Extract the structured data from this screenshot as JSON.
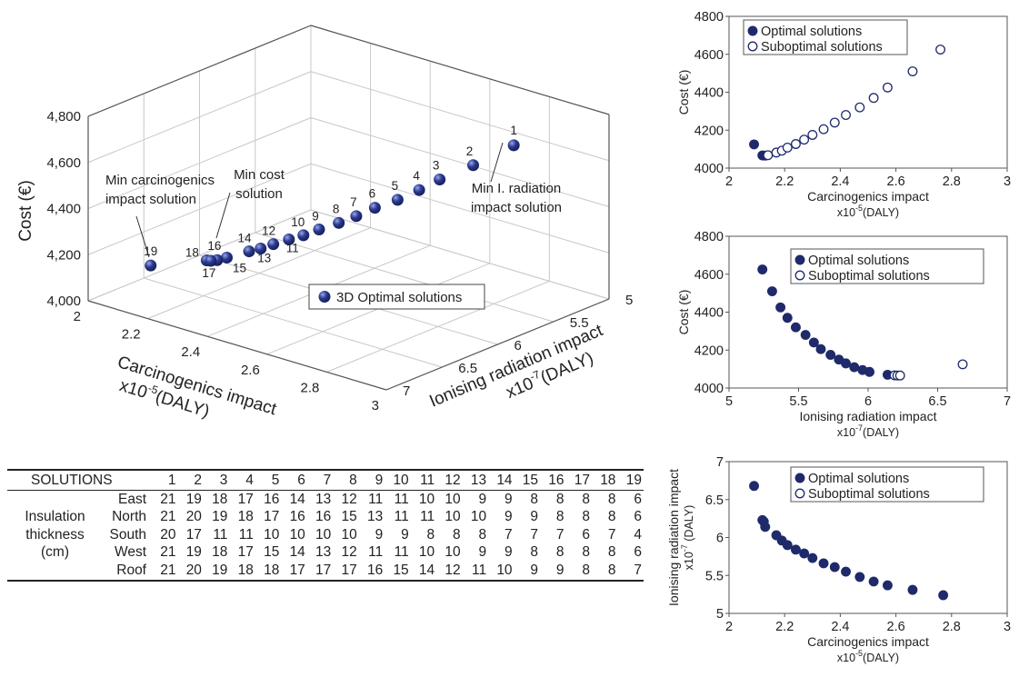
{
  "chart_data": [
    {
      "type": "scatter3d",
      "zlabel": "Cost (€)",
      "xlabel": [
        "Carcinogenics impact",
        "x10",
        "-5",
        "(DALY)"
      ],
      "ylabel": [
        "Ionising radiation impact",
        "x10",
        "-7",
        "(DALY)"
      ],
      "xlim": [
        2,
        3
      ],
      "ylim": [
        5,
        7
      ],
      "zlim": [
        4000,
        4800
      ],
      "x_ticks": [
        "2",
        "2.2",
        "2.4",
        "2.6",
        "2.8",
        "3"
      ],
      "y_ticks": [
        "5",
        "5.5",
        "6",
        "6.5",
        "7"
      ],
      "z_ticks": [
        "4,000",
        "4,200",
        "4,400",
        "4,600",
        "4,800"
      ],
      "legend": "3D Optimal solutions",
      "annotations": {
        "min_carc": [
          "Min carcinogenics",
          "impact solution"
        ],
        "min_cost": [
          "Min cost",
          "solution"
        ],
        "min_rad": [
          "Min I. radiation",
          "impact solution"
        ]
      },
      "points": [
        {
          "label": "1",
          "x": 2.77,
          "y": 5.24,
          "z": 4625
        },
        {
          "label": "2",
          "x": 2.66,
          "y": 5.31,
          "z": 4510
        },
        {
          "label": "3",
          "x": 2.57,
          "y": 5.37,
          "z": 4425
        },
        {
          "label": "4",
          "x": 2.52,
          "y": 5.42,
          "z": 4370
        },
        {
          "label": "5",
          "x": 2.47,
          "y": 5.48,
          "z": 4320
        },
        {
          "label": "6",
          "x": 2.42,
          "y": 5.55,
          "z": 4280
        },
        {
          "label": "7",
          "x": 2.38,
          "y": 5.61,
          "z": 4240
        },
        {
          "label": "8",
          "x": 2.34,
          "y": 5.66,
          "z": 4205
        },
        {
          "label": "9",
          "x": 2.3,
          "y": 5.73,
          "z": 4175
        },
        {
          "label": "10",
          "x": 2.27,
          "y": 5.79,
          "z": 4150
        },
        {
          "label": "11",
          "x": 2.24,
          "y": 5.84,
          "z": 4130
        },
        {
          "label": "12",
          "x": 2.21,
          "y": 5.9,
          "z": 4110
        },
        {
          "label": "13",
          "x": 2.19,
          "y": 5.96,
          "z": 4095
        },
        {
          "label": "14",
          "x": 2.17,
          "y": 6.01,
          "z": 4085
        },
        {
          "label": "15",
          "x": 2.14,
          "y": 6.13,
          "z": 4070
        },
        {
          "label": "16",
          "x": 2.13,
          "y": 6.19,
          "z": 4067
        },
        {
          "label": "17",
          "x": 2.12,
          "y": 6.22,
          "z": 4066
        },
        {
          "label": "18",
          "x": 2.11,
          "y": 6.23,
          "z": 4066
        },
        {
          "label": "19",
          "x": 2.09,
          "y": 6.68,
          "z": 4125
        }
      ]
    },
    {
      "type": "scatter",
      "xlabel": [
        "Carcinogenics impact",
        "x10",
        "-5",
        "(DALY)"
      ],
      "ylabel": [
        "Cost (€)"
      ],
      "xlim": [
        2,
        3
      ],
      "ylim": [
        4000,
        4800
      ],
      "x_ticks": [
        2,
        2.2,
        2.4,
        2.6,
        2.8,
        3
      ],
      "y_ticks": [
        4000,
        4200,
        4400,
        4600,
        4800
      ],
      "legend_position": "top-left",
      "series": [
        {
          "name": "Optimal solutions",
          "marker": "filled",
          "points": [
            [
              2.09,
              4125
            ],
            [
              2.12,
              4067
            ],
            [
              2.13,
              4066
            ]
          ]
        },
        {
          "name": "Suboptimal solutions",
          "marker": "open",
          "points": [
            [
              2.14,
              4068
            ],
            [
              2.17,
              4082
            ],
            [
              2.19,
              4092
            ],
            [
              2.21,
              4108
            ],
            [
              2.24,
              4127
            ],
            [
              2.27,
              4150
            ],
            [
              2.3,
              4175
            ],
            [
              2.34,
              4205
            ],
            [
              2.38,
              4240
            ],
            [
              2.42,
              4280
            ],
            [
              2.47,
              4320
            ],
            [
              2.52,
              4370
            ],
            [
              2.57,
              4425
            ],
            [
              2.66,
              4510
            ],
            [
              2.76,
              4625
            ]
          ]
        }
      ]
    },
    {
      "type": "scatter",
      "xlabel": [
        "Ionising radiation impact",
        "x10",
        "-7",
        "(DALY)"
      ],
      "ylabel": [
        "Cost (€)"
      ],
      "xlim": [
        5,
        7
      ],
      "ylim": [
        4000,
        4800
      ],
      "x_ticks": [
        5,
        5.5,
        6,
        6.5,
        7
      ],
      "y_ticks": [
        4000,
        4200,
        4400,
        4600,
        4800
      ],
      "legend_position": "top-right",
      "series": [
        {
          "name": "Optimal solutions",
          "marker": "filled",
          "points": [
            [
              5.24,
              4625
            ],
            [
              5.31,
              4510
            ],
            [
              5.37,
              4425
            ],
            [
              5.42,
              4370
            ],
            [
              5.48,
              4320
            ],
            [
              5.55,
              4280
            ],
            [
              5.61,
              4240
            ],
            [
              5.66,
              4205
            ],
            [
              5.73,
              4175
            ],
            [
              5.79,
              4150
            ],
            [
              5.84,
              4130
            ],
            [
              5.9,
              4110
            ],
            [
              5.96,
              4095
            ],
            [
              6.01,
              4085
            ],
            [
              6.14,
              4070
            ]
          ]
        },
        {
          "name": "Suboptimal solutions",
          "marker": "open",
          "points": [
            [
              6.19,
              4067
            ],
            [
              6.21,
              4066
            ],
            [
              6.23,
              4066
            ],
            [
              6.68,
              4125
            ]
          ]
        }
      ]
    },
    {
      "type": "scatter",
      "xlabel": [
        "Carcinogenics impact",
        "x10",
        "-5",
        "(DALY)"
      ],
      "ylabel": [
        "Ionising radiation impact",
        "x10",
        "-7",
        " (DALY)"
      ],
      "xlim": [
        2,
        3
      ],
      "ylim": [
        5,
        7
      ],
      "x_ticks": [
        2,
        2.2,
        2.4,
        2.6,
        2.8,
        3
      ],
      "y_ticks": [
        5,
        5.5,
        6,
        6.5,
        7
      ],
      "legend_position": "top-right",
      "series": [
        {
          "name": "Optimal solutions",
          "marker": "filled",
          "points": [
            [
              2.09,
              6.68
            ],
            [
              2.12,
              6.23
            ],
            [
              2.125,
              6.21
            ],
            [
              2.13,
              6.14
            ],
            [
              2.17,
              6.03
            ],
            [
              2.19,
              5.96
            ],
            [
              2.21,
              5.9
            ],
            [
              2.24,
              5.84
            ],
            [
              2.27,
              5.79
            ],
            [
              2.3,
              5.73
            ],
            [
              2.34,
              5.66
            ],
            [
              2.38,
              5.61
            ],
            [
              2.42,
              5.55
            ],
            [
              2.47,
              5.48
            ],
            [
              2.52,
              5.42
            ],
            [
              2.57,
              5.37
            ],
            [
              2.66,
              5.31
            ],
            [
              2.77,
              5.24
            ]
          ]
        },
        {
          "name": "Suboptimal solutions",
          "marker": "open",
          "points": []
        }
      ]
    }
  ],
  "table": {
    "header": "SOLUTIONS",
    "solutions": [
      "1",
      "2",
      "3",
      "4",
      "5",
      "6",
      "7",
      "8",
      "9",
      "10",
      "11",
      "12",
      "13",
      "14",
      "15",
      "16",
      "17",
      "18",
      "19"
    ],
    "group_label": [
      "Insulation",
      "thickness",
      "(cm)"
    ],
    "rows": [
      {
        "name": "East",
        "values": [
          "21",
          "19",
          "18",
          "17",
          "16",
          "14",
          "13",
          "12",
          "11",
          "11",
          "10",
          "10",
          "9",
          "9",
          "8",
          "8",
          "8",
          "8",
          "6"
        ]
      },
      {
        "name": "North",
        "values": [
          "21",
          "20",
          "19",
          "18",
          "17",
          "16",
          "16",
          "15",
          "13",
          "11",
          "11",
          "10",
          "10",
          "9",
          "9",
          "8",
          "8",
          "8",
          "6"
        ]
      },
      {
        "name": "South",
        "values": [
          "20",
          "17",
          "11",
          "11",
          "10",
          "10",
          "10",
          "10",
          "9",
          "9",
          "8",
          "8",
          "8",
          "7",
          "7",
          "7",
          "6",
          "7",
          "4"
        ]
      },
      {
        "name": "West",
        "values": [
          "21",
          "19",
          "18",
          "17",
          "15",
          "14",
          "13",
          "12",
          "11",
          "11",
          "10",
          "10",
          "9",
          "9",
          "8",
          "8",
          "8",
          "8",
          "6"
        ]
      },
      {
        "name": "Roof",
        "values": [
          "21",
          "20",
          "19",
          "18",
          "18",
          "17",
          "17",
          "17",
          "16",
          "15",
          "14",
          "12",
          "11",
          "10",
          "9",
          "9",
          "8",
          "8",
          "7"
        ]
      }
    ]
  },
  "colors": {
    "marker": "#1f2a6b",
    "marker_light": "#8f9be0",
    "axis": "#555555",
    "grid": "#c8c8c8"
  }
}
